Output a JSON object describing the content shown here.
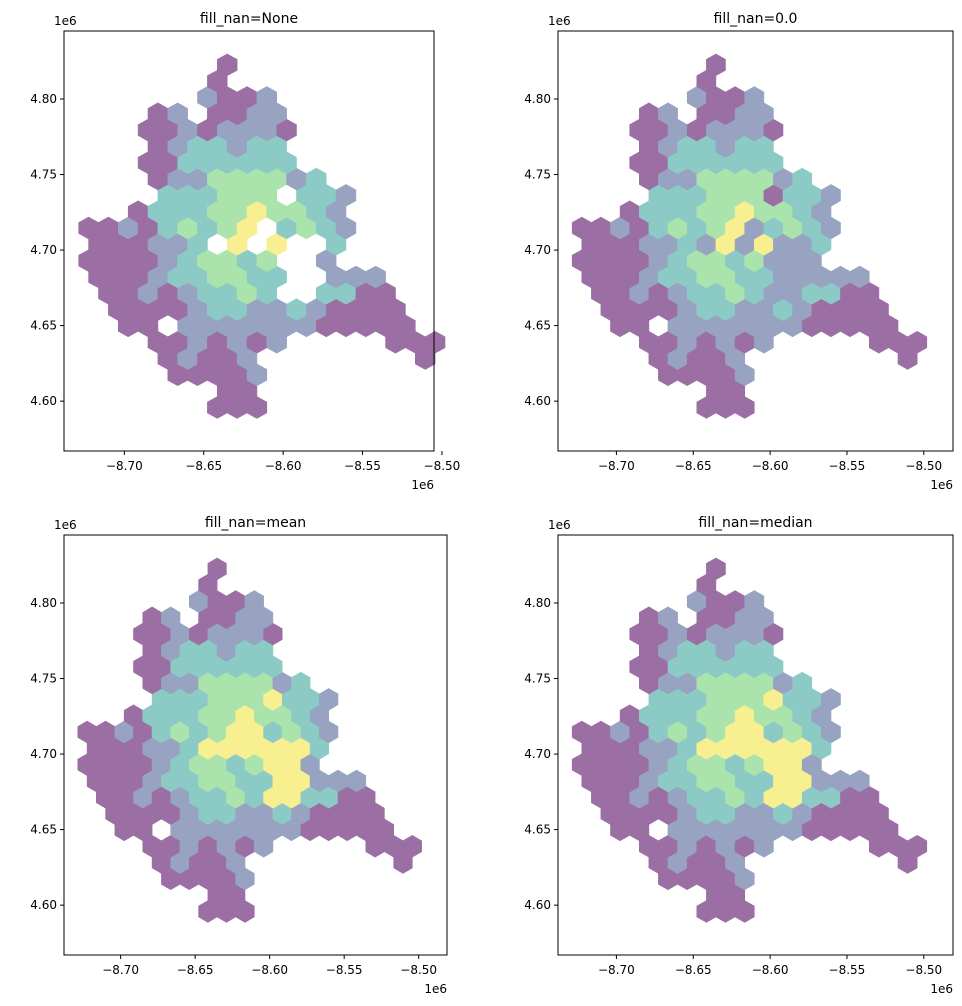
{
  "figure": {
    "offset_label": "1e6"
  },
  "palette": [
    "#9b6fa3",
    "#97a3c0",
    "#8ccbc5",
    "#aae3ab",
    "#f8ef91"
  ],
  "chart_data": [
    {
      "type": "hexbin-map",
      "title": "fill_nan=None",
      "x_offset": "1e6",
      "y_offset": "1e6",
      "xlim": [
        -8.738,
        -8.505
      ],
      "ylim": [
        4.567,
        4.845
      ],
      "xticks": [
        -8.7,
        -8.65,
        -8.6,
        -8.55,
        -8.5
      ],
      "xtick_labels": [
        "−8.70",
        "−8.65",
        "−8.60",
        "−8.55",
        "−8.50"
      ],
      "yticks": [
        4.6,
        4.65,
        4.7,
        4.75,
        4.8
      ],
      "ytick_labels": [
        "4.60",
        "4.65",
        "4.70",
        "4.75",
        "4.80"
      ],
      "missing_cells": "drawn as gaps (not filled)"
    },
    {
      "type": "hexbin-map",
      "title": "fill_nan=0.0",
      "x_offset": "1e6",
      "y_offset": "1e6",
      "xlim": [
        -8.738,
        -8.481
      ],
      "ylim": [
        4.567,
        4.845
      ],
      "xticks": [
        -8.7,
        -8.65,
        -8.6,
        -8.55,
        -8.5
      ],
      "xtick_labels": [
        "−8.70",
        "−8.65",
        "−8.60",
        "−8.55",
        "−8.50"
      ],
      "yticks": [
        4.6,
        4.65,
        4.7,
        4.75,
        4.8
      ],
      "ytick_labels": [
        "4.60",
        "4.65",
        "4.70",
        "4.75",
        "4.80"
      ],
      "missing_cells": "filled with 0.0"
    },
    {
      "type": "hexbin-map",
      "title": "fill_nan=mean",
      "x_offset": "1e6",
      "y_offset": "1e6",
      "xlim": [
        -8.738,
        -8.481
      ],
      "ylim": [
        4.567,
        4.845
      ],
      "xticks": [
        -8.7,
        -8.65,
        -8.6,
        -8.55,
        -8.5
      ],
      "xtick_labels": [
        "−8.70",
        "−8.65",
        "−8.60",
        "−8.55",
        "−8.50"
      ],
      "yticks": [
        4.6,
        4.65,
        4.7,
        4.75,
        4.8
      ],
      "ytick_labels": [
        "4.60",
        "4.65",
        "4.70",
        "4.75",
        "4.80"
      ],
      "missing_cells": "filled with mean"
    },
    {
      "type": "hexbin-map",
      "title": "fill_nan=median",
      "x_offset": "1e6",
      "y_offset": "1e6",
      "xlim": [
        -8.738,
        -8.481
      ],
      "ylim": [
        4.567,
        4.845
      ],
      "xticks": [
        -8.7,
        -8.65,
        -8.6,
        -8.55,
        -8.5
      ],
      "xtick_labels": [
        "−8.70",
        "−8.65",
        "−8.60",
        "−8.55",
        "−8.50"
      ],
      "yticks": [
        4.6,
        4.65,
        4.7,
        4.75,
        4.8
      ],
      "ytick_labels": [
        "4.60",
        "4.65",
        "4.70",
        "4.75",
        "4.80"
      ],
      "missing_cells": "filled with median"
    }
  ]
}
